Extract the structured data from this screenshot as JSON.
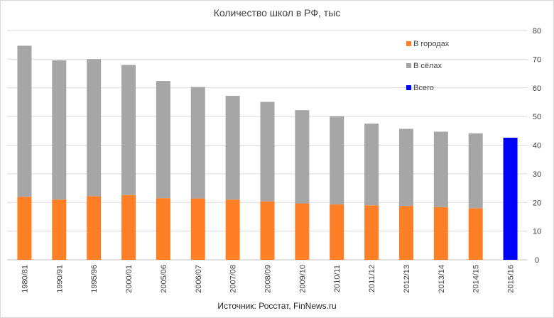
{
  "chart_data": {
    "type": "bar",
    "stacked": true,
    "title": "Количество школ в РФ, тыс",
    "source": "Источник: Росстат, FinNews.ru",
    "categories": [
      "1980/81",
      "1990/91",
      "1995/96",
      "2000/01",
      "2005/06",
      "2006/07",
      "2007/08",
      "2008/09",
      "2009/10",
      "2010/11",
      "2011/12",
      "2012/13",
      "2013/14",
      "2014/15",
      "2015/16"
    ],
    "series": [
      {
        "name": "В городах",
        "color": "#ff7f27",
        "values": [
          22.0,
          21.0,
          22.2,
          22.6,
          21.5,
          21.4,
          21.0,
          20.4,
          19.7,
          19.3,
          19.0,
          18.8,
          18.4,
          18.0,
          null
        ]
      },
      {
        "name": "В сёлах",
        "color": "#a6a6a6",
        "values": [
          52.7,
          48.6,
          47.8,
          45.4,
          40.9,
          38.9,
          36.2,
          34.7,
          32.5,
          30.8,
          28.5,
          26.9,
          26.3,
          26.1,
          null
        ]
      },
      {
        "name": "Всего",
        "color": "#0000ff",
        "values": [
          null,
          null,
          null,
          null,
          null,
          null,
          null,
          null,
          null,
          null,
          null,
          null,
          null,
          null,
          42.6
        ]
      }
    ],
    "ylim": [
      0,
      80
    ],
    "yticks": [
      0,
      10,
      20,
      30,
      40,
      50,
      60,
      70,
      80
    ],
    "y_axis_side": "right",
    "grid": true,
    "legend_position": "top-right"
  }
}
